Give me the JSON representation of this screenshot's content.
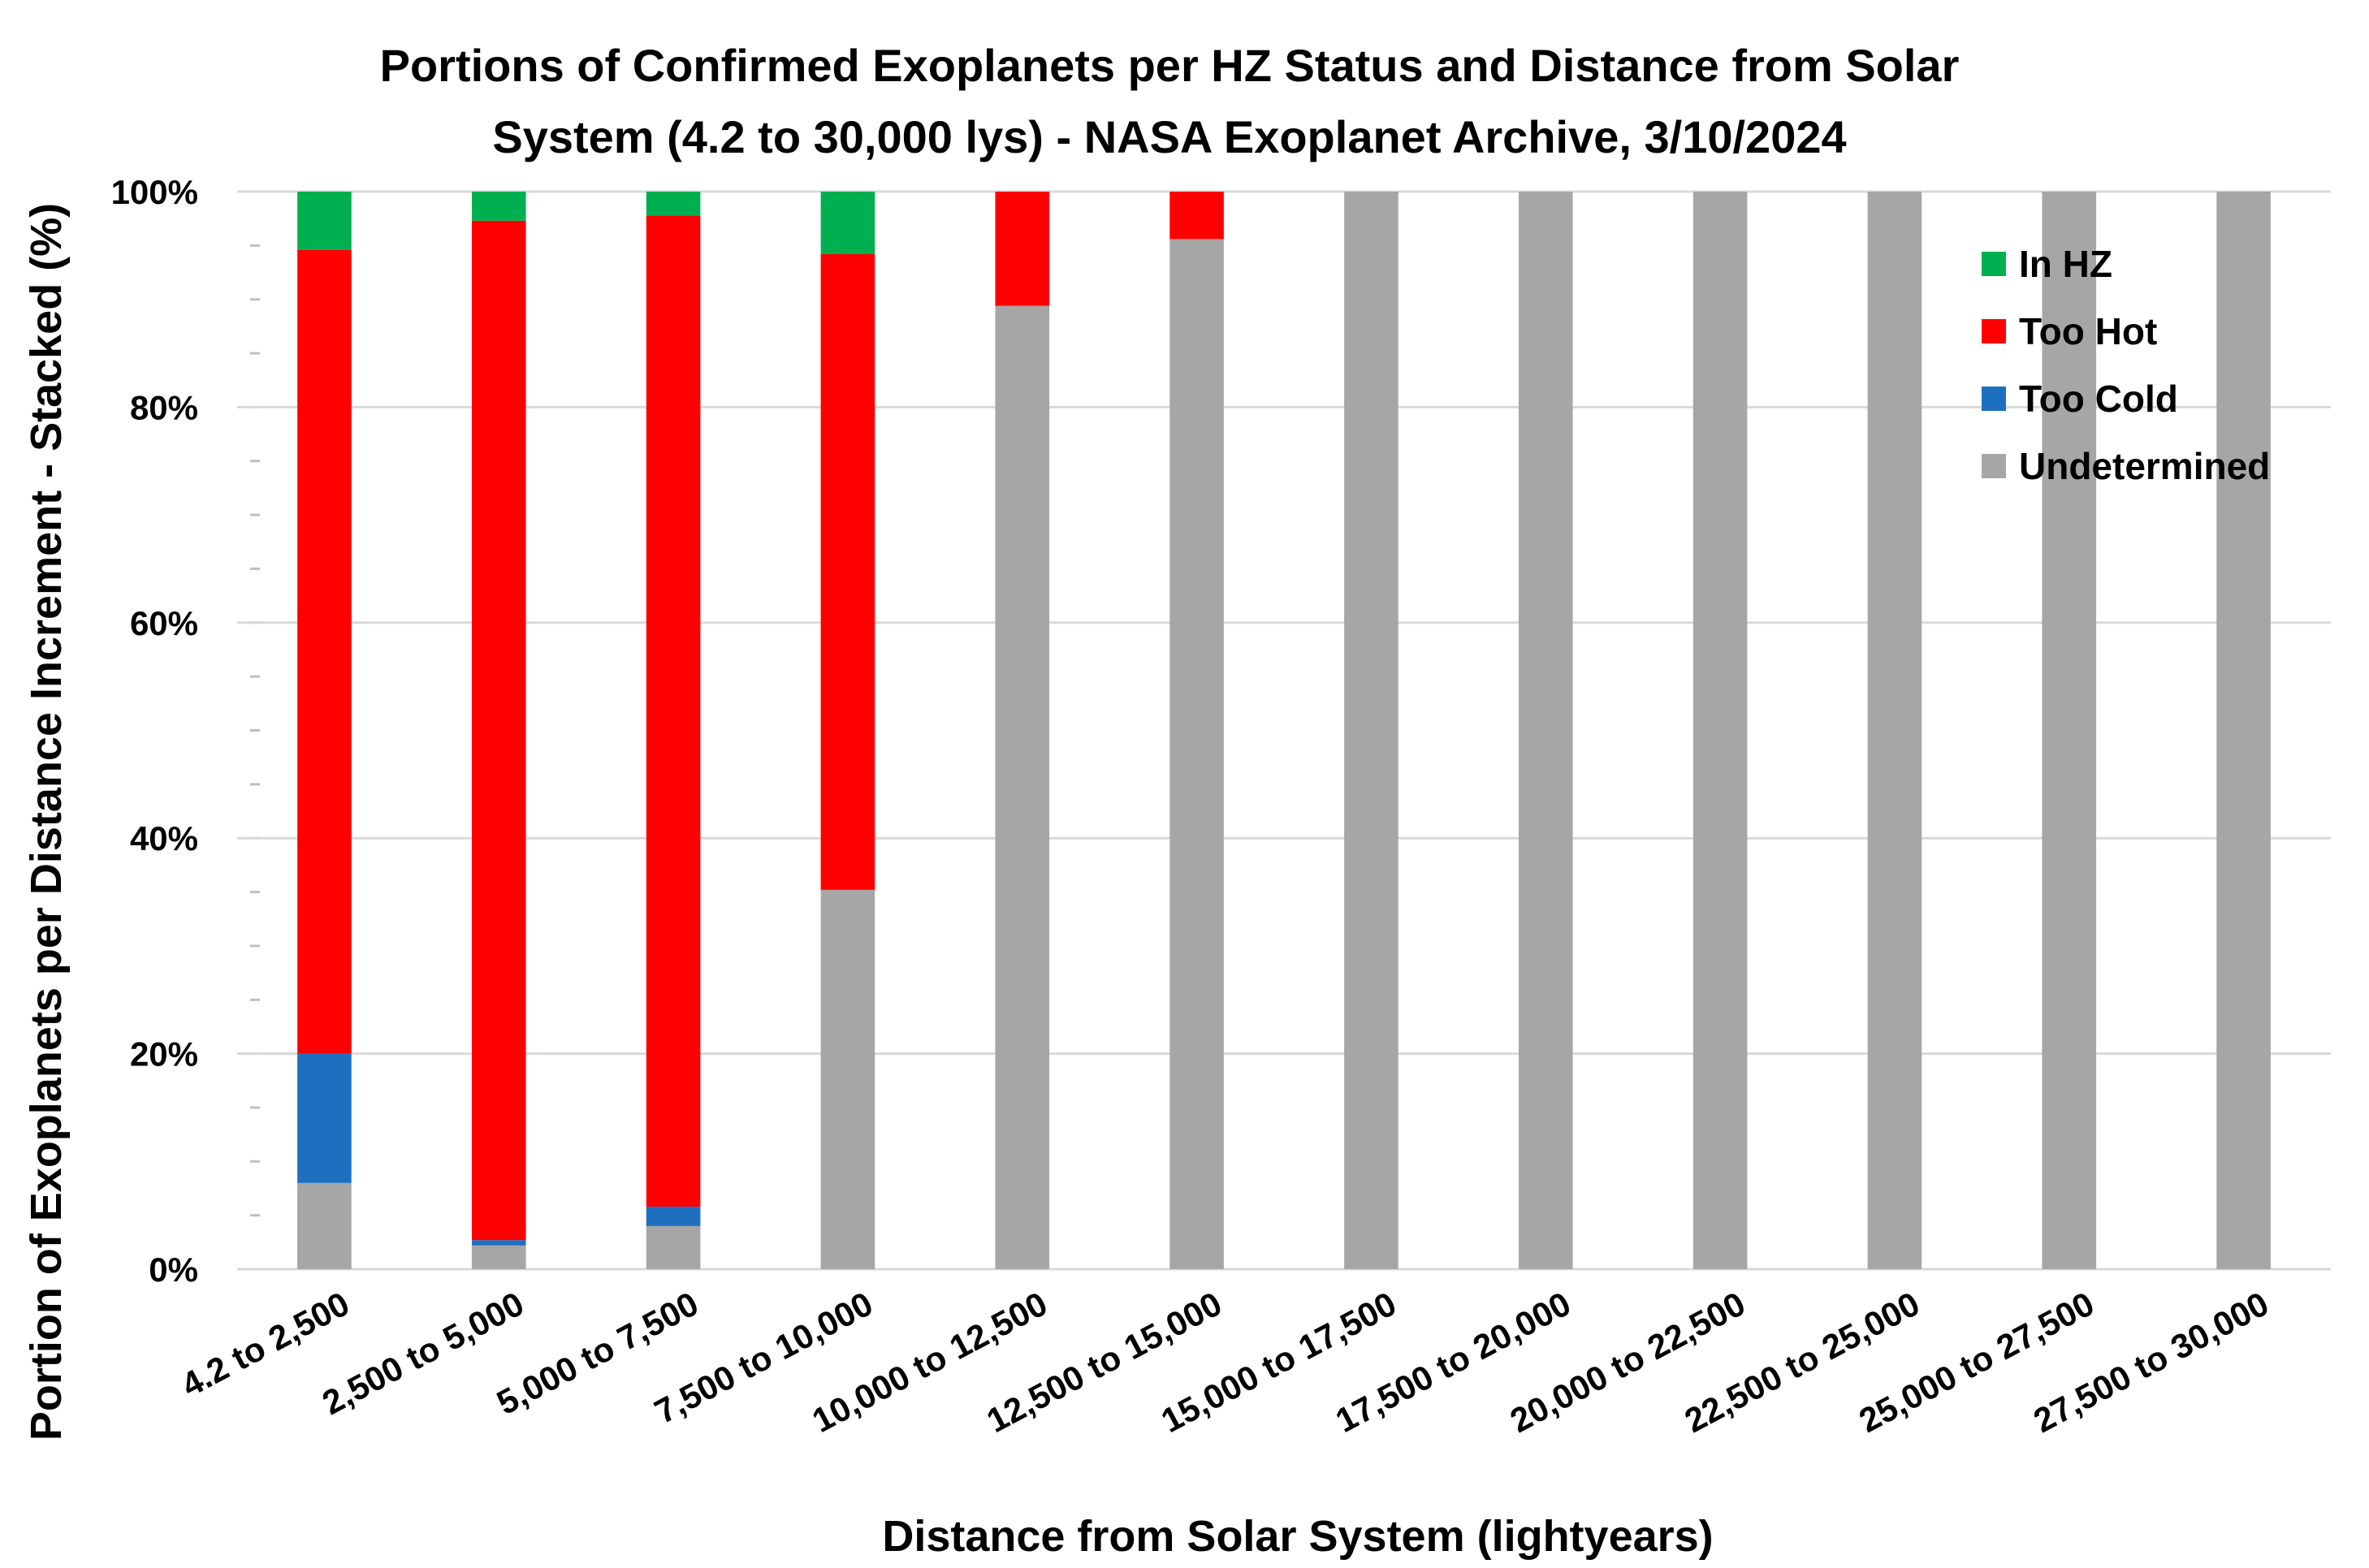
{
  "chart_data": {
    "type": "bar",
    "stacked": true,
    "title_line1": "Portions of Confirmed Exoplanets per HZ Status and Distance from Solar",
    "title_line2": "System (4.2 to 30,000 lys) - NASA Exoplanet Archive, 3/10/2024",
    "xlabel": "Distance from Solar System (lightyears)",
    "ylabel": "Portion of Exoplanets per Distance Increment - Stacked (%)",
    "ylim": [
      0,
      100
    ],
    "y_ticks": [
      {
        "value": 0,
        "label": "0%"
      },
      {
        "value": 20,
        "label": "20%"
      },
      {
        "value": 40,
        "label": "40%"
      },
      {
        "value": 60,
        "label": "60%"
      },
      {
        "value": 80,
        "label": "80%"
      },
      {
        "value": 100,
        "label": "100%"
      }
    ],
    "grid": true,
    "legend_position": "top-right",
    "categories": [
      "4.2 to 2,500",
      "2,500 to 5,000",
      "5,000 to 7,500",
      "7,500 to 10,000",
      "10,000 to 12,500",
      "12,500 to 15,000",
      "15,000 to 17,500",
      "17,500 to 20,000",
      "20,000 to 22,500",
      "22,500 to 25,000",
      "25,000 to 27,500",
      "27,500 to 30,000"
    ],
    "series": [
      {
        "name": "Undetermined",
        "color": "#a6a6a6",
        "values": [
          8,
          2.2,
          4,
          35.2,
          89.4,
          95.6,
          100,
          100,
          100,
          100,
          100,
          100
        ]
      },
      {
        "name": "Too Cold",
        "color": "#1f6fc1",
        "values": [
          12,
          0.5,
          1.8,
          0,
          0,
          0,
          0,
          0,
          0,
          0,
          0,
          0
        ]
      },
      {
        "name": "Too Hot",
        "color": "#ff0000",
        "values": [
          74.6,
          94.6,
          92,
          59,
          10.6,
          4.4,
          0,
          0,
          0,
          0,
          0,
          0
        ]
      },
      {
        "name": "In HZ",
        "color": "#00b050",
        "values": [
          5.4,
          2.7,
          2.2,
          5.8,
          0,
          0,
          0,
          0,
          0,
          0,
          0,
          0
        ]
      }
    ],
    "legend_order": [
      "In HZ",
      "Too Hot",
      "Too Cold",
      "Undetermined"
    ]
  }
}
